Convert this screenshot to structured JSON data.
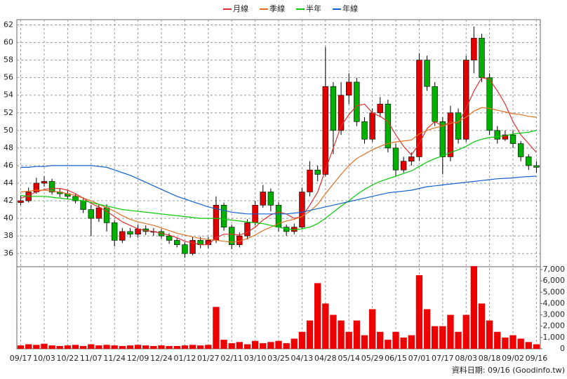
{
  "chart_data": [
    {
      "type": "candlestick",
      "open": [
        41.8,
        42,
        43,
        44,
        44.2,
        43,
        42.8,
        42.5,
        42,
        41,
        40,
        41.2,
        39.5,
        37.5,
        38.5,
        38.2,
        38.8,
        38.5,
        38.5,
        38,
        37.5,
        37,
        36,
        37.5,
        37,
        37.5,
        41.5,
        39,
        37,
        38,
        39.5,
        41.5,
        43,
        41.5,
        39,
        38.5,
        39,
        43,
        45.5,
        45,
        55,
        50,
        54,
        55.5,
        51,
        49,
        52,
        53,
        48,
        45.5,
        46.5,
        47,
        58,
        55,
        51,
        47,
        52,
        49,
        58,
        60.5,
        56,
        50,
        49,
        49.5,
        48.5,
        47,
        46
      ],
      "high": [
        42.6,
        43.5,
        44.6,
        44.8,
        44.5,
        43.4,
        43.2,
        42.8,
        42.4,
        41.5,
        41.6,
        41.6,
        39.8,
        38.9,
        38.9,
        39.3,
        39.2,
        38.9,
        38.8,
        38.3,
        37.8,
        37.3,
        37.9,
        37.9,
        37.9,
        42.5,
        41.8,
        39.3,
        38.4,
        39.9,
        42,
        43.8,
        43.4,
        41.8,
        39.3,
        39.4,
        43.5,
        46.5,
        46,
        59.5,
        55.5,
        55.5,
        56.5,
        56,
        51.5,
        52.5,
        53.8,
        53.5,
        48.5,
        47,
        47.5,
        58.8,
        58.5,
        55.5,
        51.5,
        52.8,
        52.5,
        58.5,
        61.8,
        61,
        56.5,
        50.5,
        50,
        50,
        48.8,
        47.3,
        46.5
      ],
      "low": [
        41.5,
        41.8,
        42.8,
        43.6,
        42.7,
        42.4,
        42.2,
        41.7,
        40.6,
        38,
        39.6,
        38.5,
        36.8,
        37.2,
        37.8,
        37.8,
        38.1,
        38,
        37.7,
        37.1,
        36.7,
        35.5,
        35.8,
        36.6,
        36.6,
        37.2,
        38.6,
        36.5,
        36.7,
        37.6,
        39.2,
        41.2,
        40.8,
        38.5,
        38,
        38.2,
        38.8,
        42.5,
        44.2,
        44.8,
        47.3,
        49.5,
        53,
        50.5,
        48.5,
        48.7,
        51.5,
        47.5,
        44.8,
        45.2,
        46,
        46.5,
        54.5,
        50.5,
        45,
        46.5,
        48.5,
        48.7,
        56.5,
        55.5,
        49.5,
        48.5,
        48.8,
        48,
        46.5,
        45.5,
        45.2
      ],
      "close": [
        42,
        43,
        44,
        44.2,
        43,
        42.8,
        42.5,
        42,
        41,
        40,
        41.2,
        39.5,
        37.5,
        38.5,
        38.2,
        38.8,
        38.5,
        38.5,
        38,
        37.5,
        37,
        36,
        37.5,
        37,
        37.5,
        41.5,
        39,
        37,
        38,
        39.5,
        41.5,
        43,
        41.5,
        39,
        38.5,
        39,
        43,
        45.5,
        45,
        55,
        50,
        54,
        55.5,
        51,
        49,
        52,
        53,
        48,
        45.5,
        46.5,
        47,
        58,
        55,
        51,
        47,
        52,
        49,
        58,
        60.5,
        56,
        50,
        49,
        49.5,
        48.5,
        47,
        46,
        45.8
      ],
      "up_color": "#e00000",
      "down_color": "#00b000",
      "series": [
        {
          "name": "月線",
          "color": "#e03030",
          "values": [
            42.3,
            42.6,
            43,
            43.3,
            43.4,
            43.4,
            43.2,
            42.8,
            42.3,
            41.7,
            41.3,
            40.8,
            40.2,
            39.6,
            39.2,
            38.8,
            38.6,
            38.5,
            38.3,
            38.1,
            37.8,
            37.4,
            37.2,
            37,
            37,
            37.8,
            38.2,
            38.2,
            38.1,
            38.4,
            39,
            39.8,
            40.4,
            40.7,
            40.5,
            40,
            40.2,
            41.5,
            43,
            45.5,
            48,
            50.5,
            51.8,
            52.8,
            53,
            52,
            51.6,
            51,
            49.5,
            48.2,
            47.2,
            48.5,
            50.2,
            51,
            50.5,
            51,
            50.8,
            52.5,
            54.5,
            56,
            55.8,
            54.5,
            53,
            51,
            49.5,
            48.5,
            47.5
          ]
        },
        {
          "name": "季線",
          "color": "#e07020",
          "values": [
            43,
            43.1,
            43.2,
            43.2,
            43.1,
            43,
            42.8,
            42.6,
            42.3,
            42,
            41.6,
            41.2,
            40.8,
            40.3,
            39.9,
            39.6,
            39.4,
            39.2,
            38.9,
            38.6,
            38.3,
            38.1,
            37.9,
            37.7,
            37.6,
            37.5,
            37.4,
            37.3,
            37.4,
            37.7,
            38.1,
            38.6,
            39,
            39.4,
            39.7,
            39.9,
            40.2,
            40.8,
            41.6,
            42.8,
            43.9,
            45,
            46,
            46.8,
            47.3,
            47.8,
            48.2,
            48.5,
            48.7,
            48.8,
            48.9,
            49.6,
            50,
            50.3,
            50.5,
            50.8,
            51,
            51.5,
            52.2,
            52.6,
            52.5,
            52.3,
            52.1,
            51.9,
            51.8,
            51.6,
            51.5
          ]
        },
        {
          "name": "半年",
          "color": "#00cc00",
          "values": [
            42.6,
            42.5,
            42.5,
            42.5,
            42.4,
            42.3,
            42.2,
            42.1,
            42,
            41.8,
            41.6,
            41.4,
            41.2,
            41,
            40.9,
            40.8,
            40.7,
            40.6,
            40.5,
            40.4,
            40.3,
            40.2,
            40.1,
            40,
            40,
            40,
            39.9,
            39.8,
            39.7,
            39.6,
            39.5,
            39.4,
            39.2,
            39,
            38.8,
            38.7,
            38.8,
            39,
            39.4,
            40,
            40.7,
            41.4,
            42,
            42.7,
            43.3,
            43.8,
            44.2,
            44.5,
            44.8,
            45.1,
            45.4,
            45.9,
            46.4,
            46.8,
            47.1,
            47.5,
            47.8,
            48.2,
            48.7,
            49,
            49.2,
            49.3,
            49.4,
            49.6,
            49.7,
            49.8,
            50
          ]
        },
        {
          "name": "年線",
          "color": "#1060d0",
          "values": [
            45.8,
            45.8,
            45.9,
            45.9,
            46,
            46,
            46,
            46,
            46,
            46,
            45.9,
            45.8,
            45.5,
            45.2,
            44.9,
            44.5,
            44.1,
            43.7,
            43.3,
            42.9,
            42.5,
            42.2,
            41.9,
            41.6,
            41.3,
            41.1,
            40.9,
            40.7,
            40.6,
            40.5,
            40.5,
            40.5,
            40.5,
            40.5,
            40.5,
            40.6,
            40.7,
            40.9,
            41.1,
            41.3,
            41.5,
            41.7,
            41.9,
            42.1,
            42.3,
            42.5,
            42.7,
            42.9,
            43,
            43.1,
            43.2,
            43.4,
            43.6,
            43.7,
            43.8,
            43.9,
            44,
            44.1,
            44.2,
            44.3,
            44.4,
            44.5,
            44.55,
            44.6,
            44.7,
            44.75,
            44.8
          ]
        }
      ],
      "ylim": [
        34.5,
        62.6
      ],
      "yticks": [
        36,
        38,
        40,
        42,
        44,
        46,
        48,
        50,
        52,
        54,
        56,
        58,
        60,
        62
      ],
      "grid": true
    },
    {
      "type": "bar",
      "color": "#ee0000",
      "categories": [
        "09/17",
        null,
        null,
        "10/03",
        null,
        null,
        "10/22",
        null,
        null,
        "11/07",
        null,
        null,
        "11/24",
        null,
        null,
        "12/09",
        null,
        null,
        "12/24",
        null,
        null,
        "01/12",
        null,
        null,
        "01/27",
        null,
        null,
        "02/11",
        null,
        null,
        "03/10",
        null,
        null,
        "03/25",
        null,
        null,
        "04/13",
        null,
        null,
        "04/28",
        null,
        null,
        "05/14",
        null,
        null,
        "05/29",
        null,
        null,
        "06/15",
        null,
        null,
        "07/01",
        null,
        null,
        "07/17",
        null,
        null,
        "08/03",
        null,
        null,
        "08/18",
        null,
        null,
        "09/02",
        null,
        null,
        "09/16"
      ],
      "values": [
        300,
        400,
        350,
        450,
        300,
        250,
        300,
        350,
        250,
        400,
        300,
        350,
        300,
        250,
        300,
        350,
        300,
        250,
        300,
        250,
        250,
        300,
        350,
        300,
        350,
        3700,
        800,
        500,
        600,
        400,
        700,
        500,
        600,
        700,
        500,
        900,
        1500,
        2500,
        5800,
        4000,
        3000,
        2500,
        1500,
        2500,
        1200,
        3500,
        1500,
        800,
        1500,
        1000,
        1200,
        6500,
        3500,
        2000,
        2000,
        3000,
        1500,
        3000,
        7300,
        4000,
        2500,
        1500,
        1000,
        1200,
        900,
        600,
        400
      ],
      "ylim": [
        0,
        7250
      ],
      "yticks": [
        0,
        {
          "value": 1000,
          "label": "1,000"
        },
        {
          "value": 2000,
          "label": "2,000"
        },
        {
          "value": 3000,
          "label": "3,000"
        },
        {
          "value": 4000,
          "label": "4,000"
        },
        {
          "value": 5000,
          "label": "5,000"
        },
        {
          "value": 6000,
          "label": "6,000"
        },
        {
          "value": 7000,
          "label": "7,000"
        }
      ],
      "footnote": "資料日期: 09/16 (Goodinfo.tw)"
    }
  ]
}
